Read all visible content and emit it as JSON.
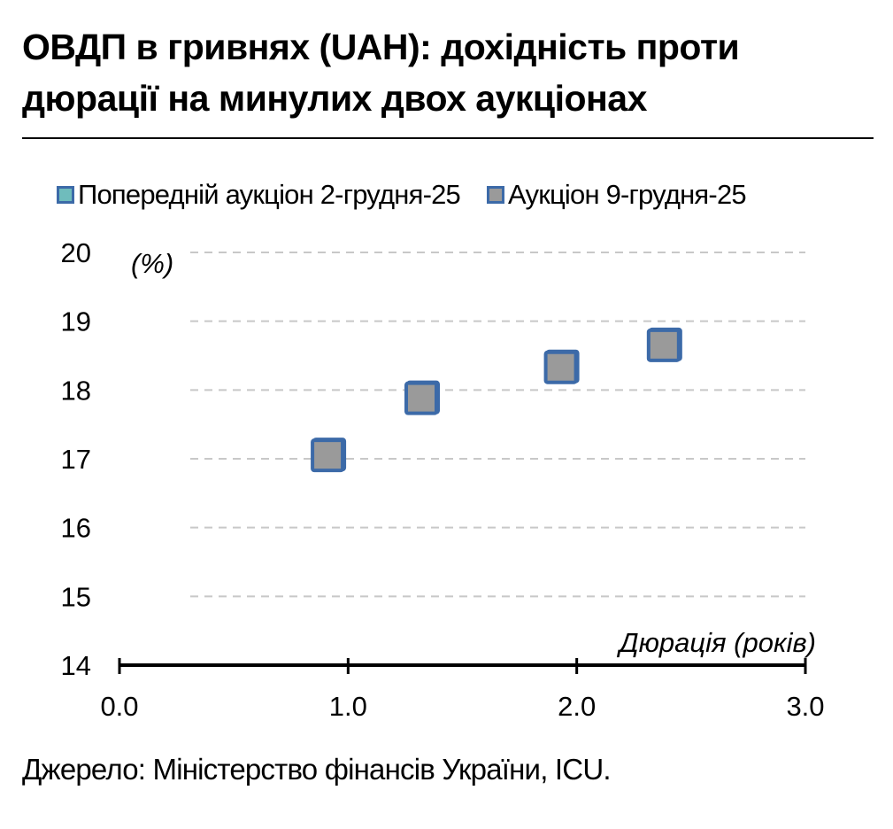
{
  "title": "ОВДП в гривнях (UAH): дохідність проти дюрації на минулих двох аукціонах",
  "source": "Джерело: Міністерство фінансів України, ICU.",
  "colors": {
    "series_prev_fill": "#6fbcbc",
    "series_curr_fill": "#9a9a9a",
    "marker_border": "#3c6aa8",
    "gridline": "#c8c8c8",
    "axis": "#000000"
  },
  "chart_data": {
    "type": "scatter",
    "title": "ОВДП в гривнях (UAH): дохідність проти дюрації на минулих двох аукціонах",
    "xlabel": "Дюрація (років)",
    "ylabel": "(%)",
    "xlim": [
      0,
      3
    ],
    "ylim": [
      14,
      20
    ],
    "x_ticks": [
      "0.0",
      "1.0",
      "2.0",
      "3.0"
    ],
    "y_ticks": [
      "14",
      "15",
      "16",
      "17",
      "18",
      "19",
      "20"
    ],
    "grid": "horizontal dashed",
    "legend_position": "top",
    "series": [
      {
        "name": "Попередній аукціон 2-грудня-25",
        "color": "#6fbcbc",
        "points": [
          [
            0.91,
            17.05
          ],
          [
            1.32,
            17.88
          ],
          [
            1.93,
            18.33
          ],
          [
            2.38,
            18.65
          ]
        ]
      },
      {
        "name": "Аукціон 9-грудня-25",
        "color": "#9a9a9a",
        "points": [
          [
            0.91,
            17.05
          ],
          [
            1.32,
            17.88
          ],
          [
            1.93,
            18.33
          ],
          [
            2.38,
            18.65
          ]
        ]
      }
    ]
  }
}
